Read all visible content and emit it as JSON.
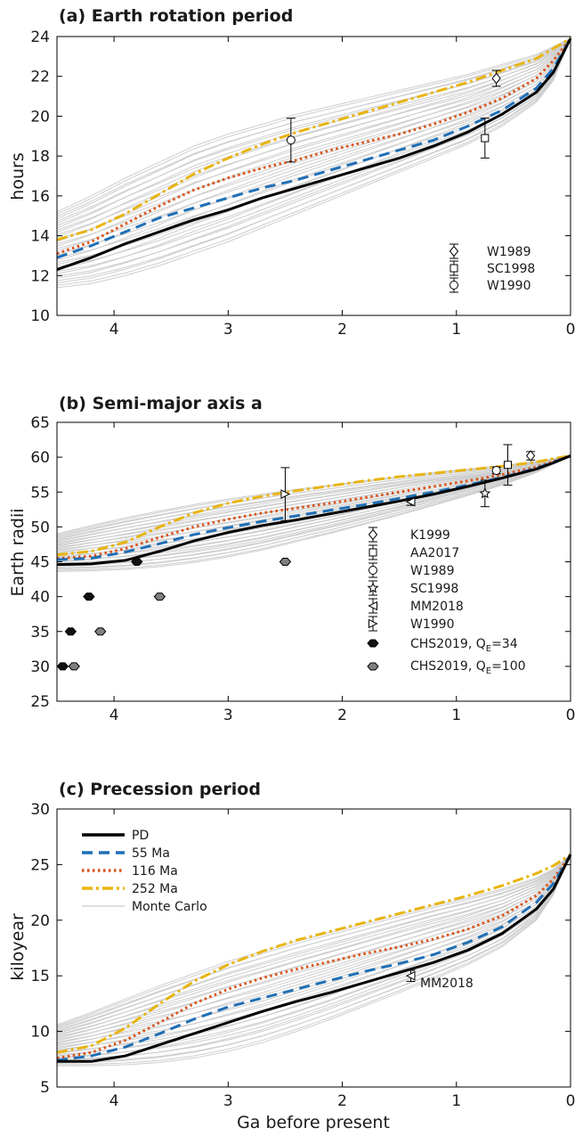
{
  "xlabel": "Ga before present",
  "colors": {
    "PD": "#000000",
    "55 Ma": "#1f6fb5",
    "116 Ma": "#d95319",
    "252 Ma": "#e8b40f",
    "Monte Carlo": "#cdcdcd",
    "CHS2019_QE34": "#111111",
    "CHS2019_QE100": "#808080"
  },
  "legend_c": [
    {
      "name": "PD",
      "style": "solid"
    },
    {
      "name": "55 Ma",
      "style": "dash"
    },
    {
      "name": "116 Ma",
      "style": "dot"
    },
    {
      "name": "252 Ma",
      "style": "dashdot"
    },
    {
      "name": "Monte Carlo",
      "style": "thin"
    }
  ],
  "chart_data": [
    {
      "type": "line",
      "title": "(a) Earth rotation period",
      "ylabel": "hours",
      "xlim": [
        4.5,
        0
      ],
      "ylim": [
        10,
        24
      ],
      "x_reversed": true,
      "xticks": [
        4,
        3,
        2,
        1,
        0
      ],
      "yticks": [
        10,
        12,
        14,
        16,
        18,
        20,
        22,
        24
      ],
      "x": [
        4.5,
        4.2,
        3.9,
        3.6,
        3.3,
        3.0,
        2.7,
        2.4,
        2.1,
        1.8,
        1.5,
        1.2,
        0.9,
        0.6,
        0.3,
        0.15,
        0.0
      ],
      "series": [
        {
          "name": "PD",
          "values": [
            12.3,
            12.9,
            13.6,
            14.2,
            14.8,
            15.3,
            15.9,
            16.4,
            16.9,
            17.4,
            17.9,
            18.5,
            19.2,
            20.1,
            21.2,
            22.2,
            23.9
          ]
        },
        {
          "name": "55 Ma",
          "values": [
            12.9,
            13.5,
            14.2,
            14.9,
            15.4,
            15.9,
            16.4,
            16.8,
            17.3,
            17.8,
            18.3,
            18.8,
            19.5,
            20.3,
            21.4,
            22.4,
            23.9
          ]
        },
        {
          "name": "116 Ma",
          "values": [
            13.1,
            13.7,
            14.6,
            15.5,
            16.3,
            16.9,
            17.4,
            17.8,
            18.3,
            18.7,
            19.1,
            19.6,
            20.2,
            20.9,
            21.9,
            22.8,
            23.9
          ]
        },
        {
          "name": "252 Ma",
          "values": [
            13.8,
            14.3,
            15.1,
            16.1,
            17.1,
            17.9,
            18.6,
            19.2,
            19.7,
            20.2,
            20.7,
            21.2,
            21.7,
            22.3,
            22.9,
            23.4,
            23.9
          ]
        }
      ],
      "mc_envelope": {
        "upper": [
          15.2,
          16.0,
          16.9,
          17.7,
          18.5,
          19.1,
          19.6,
          20.1,
          20.5,
          20.9,
          21.3,
          21.7,
          22.1,
          22.6,
          23.1,
          23.5,
          23.9
        ],
        "lower": [
          11.4,
          11.6,
          12.0,
          12.5,
          13.1,
          13.7,
          14.4,
          15.1,
          15.8,
          16.5,
          17.2,
          17.9,
          18.6,
          19.5,
          20.7,
          21.8,
          23.9
        ]
      },
      "observations": [
        {
          "name": "W1989",
          "marker": "diamond",
          "fill": "white",
          "x": 0.65,
          "y": 21.9,
          "err": [
            21.5,
            22.3
          ]
        },
        {
          "name": "SC1998",
          "marker": "square",
          "fill": "white",
          "x": 0.75,
          "y": 18.9,
          "err": [
            17.9,
            19.9
          ]
        },
        {
          "name": "W1990",
          "marker": "circle",
          "fill": "white",
          "x": 2.45,
          "y": 18.8,
          "err": [
            17.7,
            19.9
          ]
        }
      ],
      "legend_loc": "lower-right"
    },
    {
      "type": "line",
      "title": "(b) Semi-major axis a",
      "ylabel": "Earth radii",
      "xlim": [
        4.5,
        0
      ],
      "ylim": [
        25,
        65
      ],
      "x_reversed": true,
      "xticks": [
        4,
        3,
        2,
        1,
        0
      ],
      "yticks": [
        25,
        30,
        35,
        40,
        45,
        50,
        55,
        60,
        65
      ],
      "x": [
        4.5,
        4.2,
        3.9,
        3.6,
        3.3,
        3.0,
        2.7,
        2.4,
        2.1,
        1.8,
        1.5,
        1.2,
        0.9,
        0.6,
        0.3,
        0.15,
        0.0
      ],
      "series": [
        {
          "name": "PD",
          "values": [
            44.6,
            44.7,
            45.2,
            46.5,
            48.0,
            49.2,
            50.2,
            51.0,
            51.9,
            52.8,
            53.7,
            54.7,
            55.8,
            57.0,
            58.3,
            59.2,
            60.2
          ]
        },
        {
          "name": "55 Ma",
          "values": [
            45.3,
            45.5,
            46.4,
            47.6,
            48.9,
            49.9,
            50.8,
            51.6,
            52.4,
            53.2,
            54.1,
            55.0,
            56.0,
            57.1,
            58.4,
            59.3,
            60.2
          ]
        },
        {
          "name": "116 Ma",
          "values": [
            45.5,
            45.8,
            46.9,
            48.5,
            50.0,
            51.1,
            52.0,
            52.7,
            53.4,
            54.2,
            55.0,
            55.8,
            56.6,
            57.5,
            58.6,
            59.4,
            60.2
          ]
        },
        {
          "name": "252 Ma",
          "values": [
            46.0,
            46.5,
            47.8,
            50.0,
            52.0,
            53.4,
            54.4,
            55.2,
            55.9,
            56.6,
            57.2,
            57.7,
            58.2,
            58.7,
            59.3,
            59.8,
            60.2
          ]
        }
      ],
      "mc_envelope": {
        "upper": [
          49.0,
          50.2,
          51.3,
          52.3,
          53.2,
          54.0,
          54.7,
          55.4,
          56.0,
          56.6,
          57.2,
          57.8,
          58.3,
          58.8,
          59.4,
          59.8,
          60.2
        ],
        "lower": [
          43.6,
          43.7,
          43.9,
          44.3,
          44.9,
          45.7,
          46.7,
          47.9,
          49.1,
          50.4,
          51.7,
          53.1,
          54.5,
          56.0,
          57.8,
          59.0,
          60.2
        ]
      },
      "observations": [
        {
          "name": "K1999",
          "marker": "diamond",
          "fill": "white",
          "x": 0.35,
          "y": 60.2,
          "err": [
            59.6,
            60.8
          ]
        },
        {
          "name": "AA2017",
          "marker": "square",
          "fill": "white",
          "x": 0.55,
          "y": 58.9,
          "err": [
            56.0,
            61.8
          ]
        },
        {
          "name": "W1989",
          "marker": "circle",
          "fill": "white",
          "x": 0.65,
          "y": 58.1,
          "err": [
            57.6,
            58.6
          ]
        },
        {
          "name": "SC1998",
          "marker": "star",
          "fill": "white",
          "x": 0.75,
          "y": 54.8,
          "err": [
            52.9,
            56.7
          ]
        },
        {
          "name": "MM2018",
          "marker": "tri-left",
          "fill": "white",
          "x": 1.4,
          "y": 53.6,
          "err": [
            53.1,
            54.1
          ]
        },
        {
          "name": "W1990",
          "marker": "tri-right",
          "fill": "white",
          "x": 2.5,
          "y": 54.7,
          "err": [
            50.9,
            58.5
          ]
        }
      ],
      "chs2019_qe34": {
        "name": "CHS2019, Q_E=34",
        "x": [
          4.45,
          4.38,
          4.22,
          3.8
        ],
        "y": [
          30,
          35,
          40,
          45
        ]
      },
      "chs2019_qe100": {
        "name": "CHS2019, Q_E=100",
        "x": [
          4.35,
          4.12,
          3.6,
          2.5
        ],
        "y": [
          30,
          35,
          40,
          45
        ]
      },
      "legend_loc": "lower-right"
    },
    {
      "type": "line",
      "title": "(c) Precession period",
      "ylabel": "kiloyear",
      "xlim": [
        4.5,
        0
      ],
      "ylim": [
        5,
        30
      ],
      "x_reversed": true,
      "xticks": [
        4,
        3,
        2,
        1,
        0
      ],
      "yticks": [
        5,
        10,
        15,
        20,
        25,
        30
      ],
      "x": [
        4.5,
        4.2,
        3.9,
        3.6,
        3.3,
        3.0,
        2.7,
        2.4,
        2.1,
        1.8,
        1.5,
        1.2,
        0.9,
        0.6,
        0.3,
        0.15,
        0.0
      ],
      "series": [
        {
          "name": "PD",
          "values": [
            7.3,
            7.3,
            7.8,
            8.8,
            9.8,
            10.8,
            11.8,
            12.7,
            13.5,
            14.4,
            15.3,
            16.2,
            17.3,
            18.8,
            21.0,
            22.8,
            25.9
          ]
        },
        {
          "name": "55 Ma",
          "values": [
            7.4,
            7.8,
            8.6,
            9.8,
            11.1,
            12.2,
            13.0,
            13.8,
            14.6,
            15.4,
            16.1,
            16.9,
            18.0,
            19.4,
            21.6,
            23.3,
            25.9
          ]
        },
        {
          "name": "116 Ma",
          "values": [
            7.6,
            8.1,
            9.2,
            10.8,
            12.5,
            13.8,
            14.8,
            15.6,
            16.3,
            17.0,
            17.6,
            18.3,
            19.2,
            20.4,
            22.2,
            23.7,
            25.9
          ]
        },
        {
          "name": "252 Ma",
          "values": [
            8.1,
            8.7,
            10.3,
            12.5,
            14.5,
            16.0,
            17.2,
            18.2,
            19.0,
            19.8,
            20.6,
            21.4,
            22.2,
            23.1,
            24.2,
            24.9,
            25.9
          ]
        }
      ],
      "mc_envelope": {
        "upper": [
          10.6,
          11.7,
          12.9,
          14.1,
          15.2,
          16.3,
          17.2,
          18.1,
          18.9,
          19.7,
          20.5,
          21.3,
          22.0,
          22.8,
          23.8,
          24.6,
          25.9
        ]
      },
      "mc_envelope_lower": [
        6.9,
        6.9,
        7.0,
        7.2,
        7.6,
        8.2,
        9.0,
        10.0,
        11.1,
        12.3,
        13.5,
        14.7,
        16.0,
        17.6,
        20.0,
        22.3,
        25.9
      ],
      "observations": [
        {
          "name": "MM2018",
          "marker": "tri-left",
          "fill": "white",
          "x": 1.4,
          "y": 15.0,
          "err": [
            14.5,
            15.5
          ],
          "label": "MM2018"
        }
      ],
      "legend_loc": "upper-left"
    }
  ]
}
